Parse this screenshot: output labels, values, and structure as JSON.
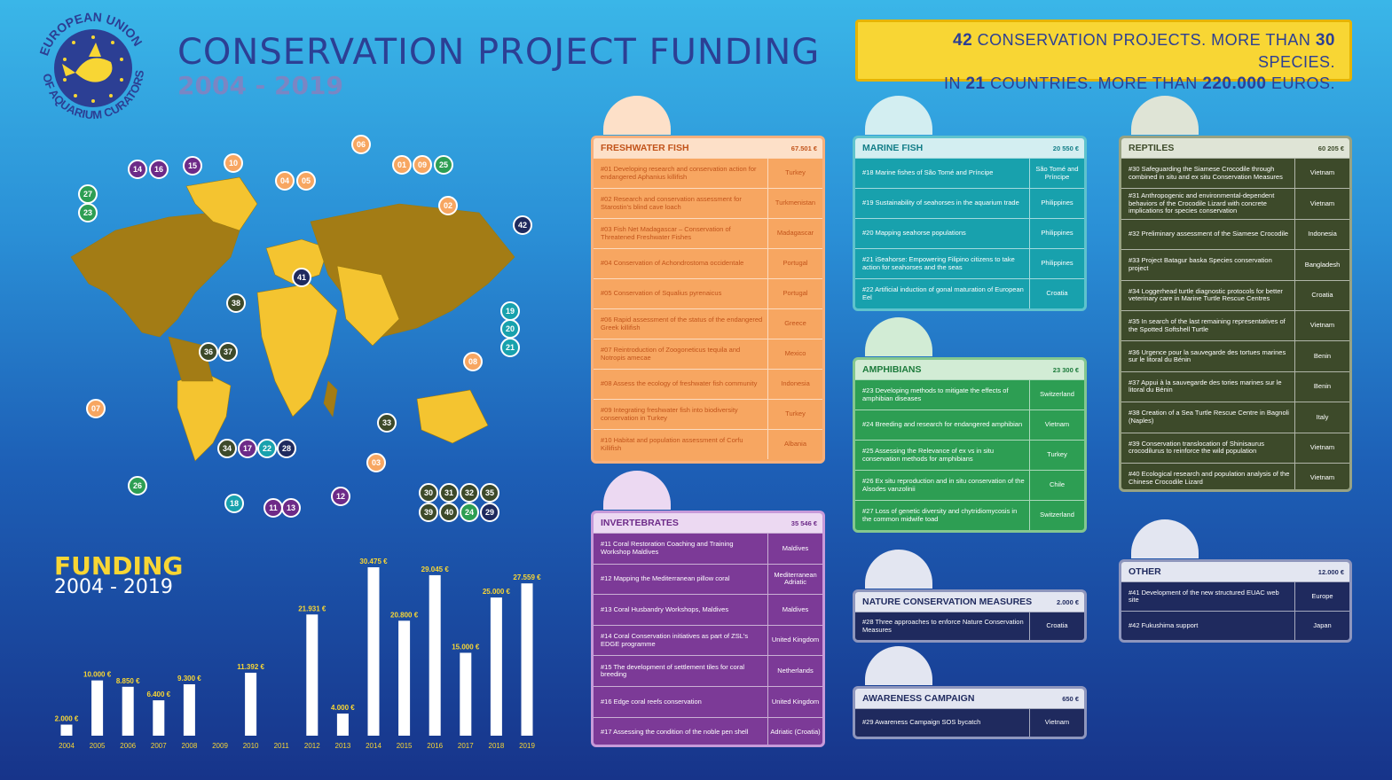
{
  "header": {
    "title": "CONSERVATION PROJECT FUNDING",
    "years": "2004 - 2019",
    "logo_text": "EUROPEAN UNION OF AQUARIUM CURATORS"
  },
  "banner": {
    "line1_pre": "42",
    "line1_mid": " CONSERVATION PROJECTS. MORE THAN ",
    "line1_num": "30",
    "line1_post": " SPECIES.",
    "line2_pre": "IN ",
    "line2_num": "21",
    "line2_mid": " COUNTRIES. MORE THAN ",
    "line2_num2": "220.000",
    "line2_post": " EUROS."
  },
  "panels": {
    "freshwater": {
      "title": "FRESHWATER FISH",
      "amount": "67.501 €",
      "rows": [
        {
          "desc": "#01 Developing research and conservation action for endangered Aphanius killifish",
          "country": "Turkey"
        },
        {
          "desc": "#02 Research and conservation assessment for Starostin's blind cave loach",
          "country": "Turkmenistan"
        },
        {
          "desc": "#03 Fish Net Madagascar – Conservation of Threatened Freshwater Fishes",
          "country": "Madagascar"
        },
        {
          "desc": "#04 Conservation of Achondrostoma occidentale",
          "country": "Portugal"
        },
        {
          "desc": "#05 Conservation of Squalius pyrenaicus",
          "country": "Portugal"
        },
        {
          "desc": "#06 Rapid assessment of the status of the endangered Greek killifish",
          "country": "Greece"
        },
        {
          "desc": "#07 Reintroduction of Zoogoneticus tequila and Notropis amecae",
          "country": "Mexico"
        },
        {
          "desc": "#08 Assess the ecology of freshwater fish community",
          "country": "Indonesia"
        },
        {
          "desc": "#09 Integrating freshwater fish into biodiversity conservation in Turkey",
          "country": "Turkey"
        },
        {
          "desc": "#10 Habitat and population assessment of Corfu Killifish",
          "country": "Albania"
        }
      ]
    },
    "marine": {
      "title": "MARINE FISH",
      "amount": "20 550 €",
      "rows": [
        {
          "desc": "#18 Marine fishes of São Tomé and Príncipe",
          "country": "São Tomé and Príncipe"
        },
        {
          "desc": "#19 Sustainability of seahorses in the aquarium trade",
          "country": "Philippines"
        },
        {
          "desc": "#20 Mapping seahorse populations",
          "country": "Philippines"
        },
        {
          "desc": "#21 iSeahorse: Empowering Filipino citizens to take action for seahorses and the seas",
          "country": "Philippines"
        },
        {
          "desc": "#22 Artificial induction of gonal maturation of European Eel",
          "country": "Croatia"
        }
      ]
    },
    "amphibians": {
      "title": "AMPHIBIANS",
      "amount": "23 300 €",
      "rows": [
        {
          "desc": "#23 Developing methods to mitigate the effects of amphibian diseases",
          "country": "Switzerland"
        },
        {
          "desc": "#24 Breeding and research for endangered amphibian",
          "country": "Vietnam"
        },
        {
          "desc": "#25 Assessing the Relevance of ex vs in situ conservation methods for amphibians",
          "country": "Turkey"
        },
        {
          "desc": "#26 Ex situ reproduction and in situ conservation of the Alsodes vanzolinii",
          "country": "Chile"
        },
        {
          "desc": "#27 Loss of genetic diversity and chytridiomycosis in the common midwife toad",
          "country": "Switzerland"
        }
      ]
    },
    "reptiles": {
      "title": "REPTILES",
      "amount": "60 205 €",
      "rows": [
        {
          "desc": "#30 Safeguarding the Siamese Crocodile through combined in situ and ex situ Conservation Measures",
          "country": "Vietnam"
        },
        {
          "desc": "#31 Anthropogenic and environmental-dependent behaviors of the Crocodile Lizard with concrete implications for species conservation",
          "country": "Vietnam"
        },
        {
          "desc": "#32 Preliminary assessment of the Siamese Crocodile",
          "country": "Indonesia"
        },
        {
          "desc": "#33 Project Batagur baska Species conservation project",
          "country": "Bangladesh"
        },
        {
          "desc": "#34 Loggerhead turtle diagnostic protocols for better veterinary care in Marine Turtle Rescue Centres",
          "country": "Croatia"
        },
        {
          "desc": "#35 In search of the last remaining representatives of the Spotted Softshell Turtle",
          "country": "Vietnam"
        },
        {
          "desc": "#36 Urgence pour la sauvegarde des tortues marines sur le litoral du Bénin",
          "country": "Benin"
        },
        {
          "desc": "#37 Appui à la sauvegarde des tories marines sur le litoral du Bénin",
          "country": "Benin"
        },
        {
          "desc": "#38 Creation of a Sea Turtle Rescue Centre in Bagnoli (Naples)",
          "country": "Italy"
        },
        {
          "desc": "#39 Conservation translocation of Shinisaurus crocodilurus to reinforce the wild population",
          "country": "Vietnam"
        },
        {
          "desc": "#40 Ecological research and population analysis of the Chinese Crocodile Lizard",
          "country": "Vietnam"
        }
      ]
    },
    "invertebrates": {
      "title": "INVERTEBRATES",
      "amount": "35 546 €",
      "rows": [
        {
          "desc": "#11 Coral Restoration Coaching and Training Workshop Maldives",
          "country": "Maldives"
        },
        {
          "desc": "#12 Mapping the Mediterranean pillow coral",
          "country": "Mediterranean Adriatic"
        },
        {
          "desc": "#13 Coral Husbandry Workshops, Maldives",
          "country": "Maldives"
        },
        {
          "desc": "#14 Coral Conservation initiatives as part of ZSL's EDGE programme",
          "country": "United Kingdom"
        },
        {
          "desc": "#15 The development of settlement tiles for coral breeding",
          "country": "Netherlands"
        },
        {
          "desc": "#16 Edge coral reefs conservation",
          "country": "United Kingdom"
        },
        {
          "desc": "#17 Assessing the condition of the noble pen shell",
          "country": "Adriatic (Croatia)"
        }
      ]
    },
    "ncm": {
      "title": "NATURE CONSERVATION MEASURES",
      "amount": "2.000 €",
      "rows": [
        {
          "desc": "#28 Three approaches to enforce Nature Conservation Measures",
          "country": "Croatia"
        }
      ]
    },
    "awareness": {
      "title": "AWARENESS CAMPAIGN",
      "amount": "650 €",
      "rows": [
        {
          "desc": "#29 Awareness Campaign SOS bycatch",
          "country": "Vietnam"
        }
      ]
    },
    "other": {
      "title": "OTHER",
      "amount": "12.000 €",
      "rows": [
        {
          "desc": "#41 Development of the new structured EUAC web site",
          "country": "Europe"
        },
        {
          "desc": "#42 Fukushima support",
          "country": "Japan"
        }
      ]
    }
  },
  "funding": {
    "title": "FUNDING",
    "years": "2004 - 2019"
  },
  "chart_data": {
    "type": "bar",
    "title": "FUNDING 2004 - 2019",
    "categories": [
      "2004",
      "2005",
      "2006",
      "2007",
      "2008",
      "2009",
      "2010",
      "2011",
      "2012",
      "2013",
      "2014",
      "2015",
      "2016",
      "2017",
      "2018",
      "2019"
    ],
    "values": [
      2000,
      10000,
      8850,
      6400,
      9300,
      0,
      11392,
      0,
      21931,
      4000,
      30475,
      20800,
      29045,
      15000,
      25000,
      27559
    ],
    "labels": [
      "2.000 €",
      "10.000 €",
      "8.850 €",
      "6.400 €",
      "9.300 €",
      "",
      "11.392 €",
      "",
      "21.931 €",
      "4.000 €",
      "30.475 €",
      "20.800 €",
      "29.045 €",
      "15.000 €",
      "25.000 €",
      "27.559 €"
    ],
    "ylim": [
      0,
      30475
    ],
    "xlabel": "",
    "ylabel": "",
    "bar_color": "#ffffff",
    "label_color": "#f8d634"
  },
  "map": {
    "bubbles": [
      {
        "n": "14",
        "color": "#6d2a88"
      },
      {
        "n": "16",
        "color": "#6d2a88"
      },
      {
        "n": "15",
        "color": "#6d2a88"
      },
      {
        "n": "10",
        "color": "#f7a661"
      },
      {
        "n": "06",
        "color": "#f7a661"
      },
      {
        "n": "04",
        "color": "#f7a661"
      },
      {
        "n": "05",
        "color": "#f7a661"
      },
      {
        "n": "01",
        "color": "#f7a661"
      },
      {
        "n": "09",
        "color": "#f7a661"
      },
      {
        "n": "25",
        "color": "#2d9e53"
      },
      {
        "n": "27",
        "color": "#2d9e53"
      },
      {
        "n": "23",
        "color": "#2d9e53"
      },
      {
        "n": "02",
        "color": "#f7a661"
      },
      {
        "n": "42",
        "color": "#1f2a5e"
      },
      {
        "n": "41",
        "color": "#1f2a5e"
      },
      {
        "n": "38",
        "color": "#3d4a2a"
      },
      {
        "n": "19",
        "color": "#18a1ad"
      },
      {
        "n": "20",
        "color": "#18a1ad"
      },
      {
        "n": "21",
        "color": "#18a1ad"
      },
      {
        "n": "36",
        "color": "#3d4a2a"
      },
      {
        "n": "37",
        "color": "#3d4a2a"
      },
      {
        "n": "08",
        "color": "#f7a661"
      },
      {
        "n": "07",
        "color": "#f7a661"
      },
      {
        "n": "33",
        "color": "#3d4a2a"
      },
      {
        "n": "34",
        "color": "#3d4a2a"
      },
      {
        "n": "17",
        "color": "#6d2a88"
      },
      {
        "n": "22",
        "color": "#18a1ad"
      },
      {
        "n": "28",
        "color": "#1f2a5e"
      },
      {
        "n": "03",
        "color": "#f7a661"
      },
      {
        "n": "26",
        "color": "#2d9e53"
      },
      {
        "n": "12",
        "color": "#6d2a88"
      },
      {
        "n": "18",
        "color": "#18a1ad"
      },
      {
        "n": "11",
        "color": "#6d2a88"
      },
      {
        "n": "13",
        "color": "#6d2a88"
      },
      {
        "n": "30",
        "color": "#3d4a2a"
      },
      {
        "n": "31",
        "color": "#3d4a2a"
      },
      {
        "n": "32",
        "color": "#3d4a2a"
      },
      {
        "n": "35",
        "color": "#3d4a2a"
      },
      {
        "n": "39",
        "color": "#3d4a2a"
      },
      {
        "n": "40",
        "color": "#3d4a2a"
      },
      {
        "n": "24",
        "color": "#2d9e53"
      },
      {
        "n": "29",
        "color": "#1f2a5e"
      }
    ]
  }
}
